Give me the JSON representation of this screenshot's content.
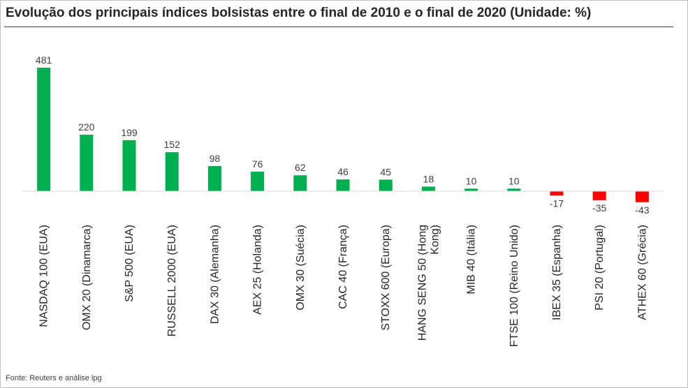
{
  "title": "Evolução dos principais índices bolsistas entre o final de 2010 e o final de 2020 (Unidade: %)",
  "source": "Fonte: Reuters e análise lpg",
  "colors": {
    "positive": "#00b050",
    "negative": "#ff0000",
    "axis": "#d9d9d9"
  },
  "chart_data": {
    "type": "bar",
    "title": "Evolução dos principais índices bolsistas entre o final de 2010 e o final de 2020 (Unidade: %)",
    "categories": [
      "NASDAQ 100 (EUA)",
      "OMX 20 (Dinamarca)",
      "S&P 500 (EUA)",
      "RUSSELL 2000 (EUA)",
      "DAX 30 (Alemanha)",
      "AEX 25 (Holanda)",
      "OMX 30 (Suécia)",
      "CAC 40 (França)",
      "STOXX 600 (Europa)",
      "HANG SENG 50 (Hong Kong)",
      "MIB 40 (Itália)",
      "FTSE 100 (Reino Unido)",
      "IBEX 35 (Espanha)",
      "PSI 20 (Portugal)",
      "ATHEX 60 (Grécia)"
    ],
    "values": [
      481,
      220,
      199,
      152,
      98,
      76,
      62,
      46,
      45,
      18,
      10,
      10,
      -17,
      -35,
      -43
    ],
    "category_lines": [
      [
        "NASDAQ 100 (EUA)"
      ],
      [
        "OMX 20 (Dinamarca)"
      ],
      [
        "S&P 500 (EUA)"
      ],
      [
        "RUSSELL 2000 (EUA)"
      ],
      [
        "DAX 30 (Alemanha)"
      ],
      [
        "AEX 25 (Holanda)"
      ],
      [
        "OMX 30 (Suécia)"
      ],
      [
        "CAC 40 (França)"
      ],
      [
        "STOXX 600 (Europa)"
      ],
      [
        "HANG SENG 50 (Hong",
        "Kong)"
      ],
      [
        "MIB 40 (Itália)"
      ],
      [
        "FTSE 100 (Reino Unido)"
      ],
      [
        "IBEX 35 (Espanha)"
      ],
      [
        "PSI 20 (Portugal)"
      ],
      [
        "ATHEX 60 (Grécia)"
      ]
    ],
    "ylim": [
      -43,
      481
    ],
    "grid": false,
    "legend": "none",
    "xlabel": "",
    "ylabel": ""
  }
}
